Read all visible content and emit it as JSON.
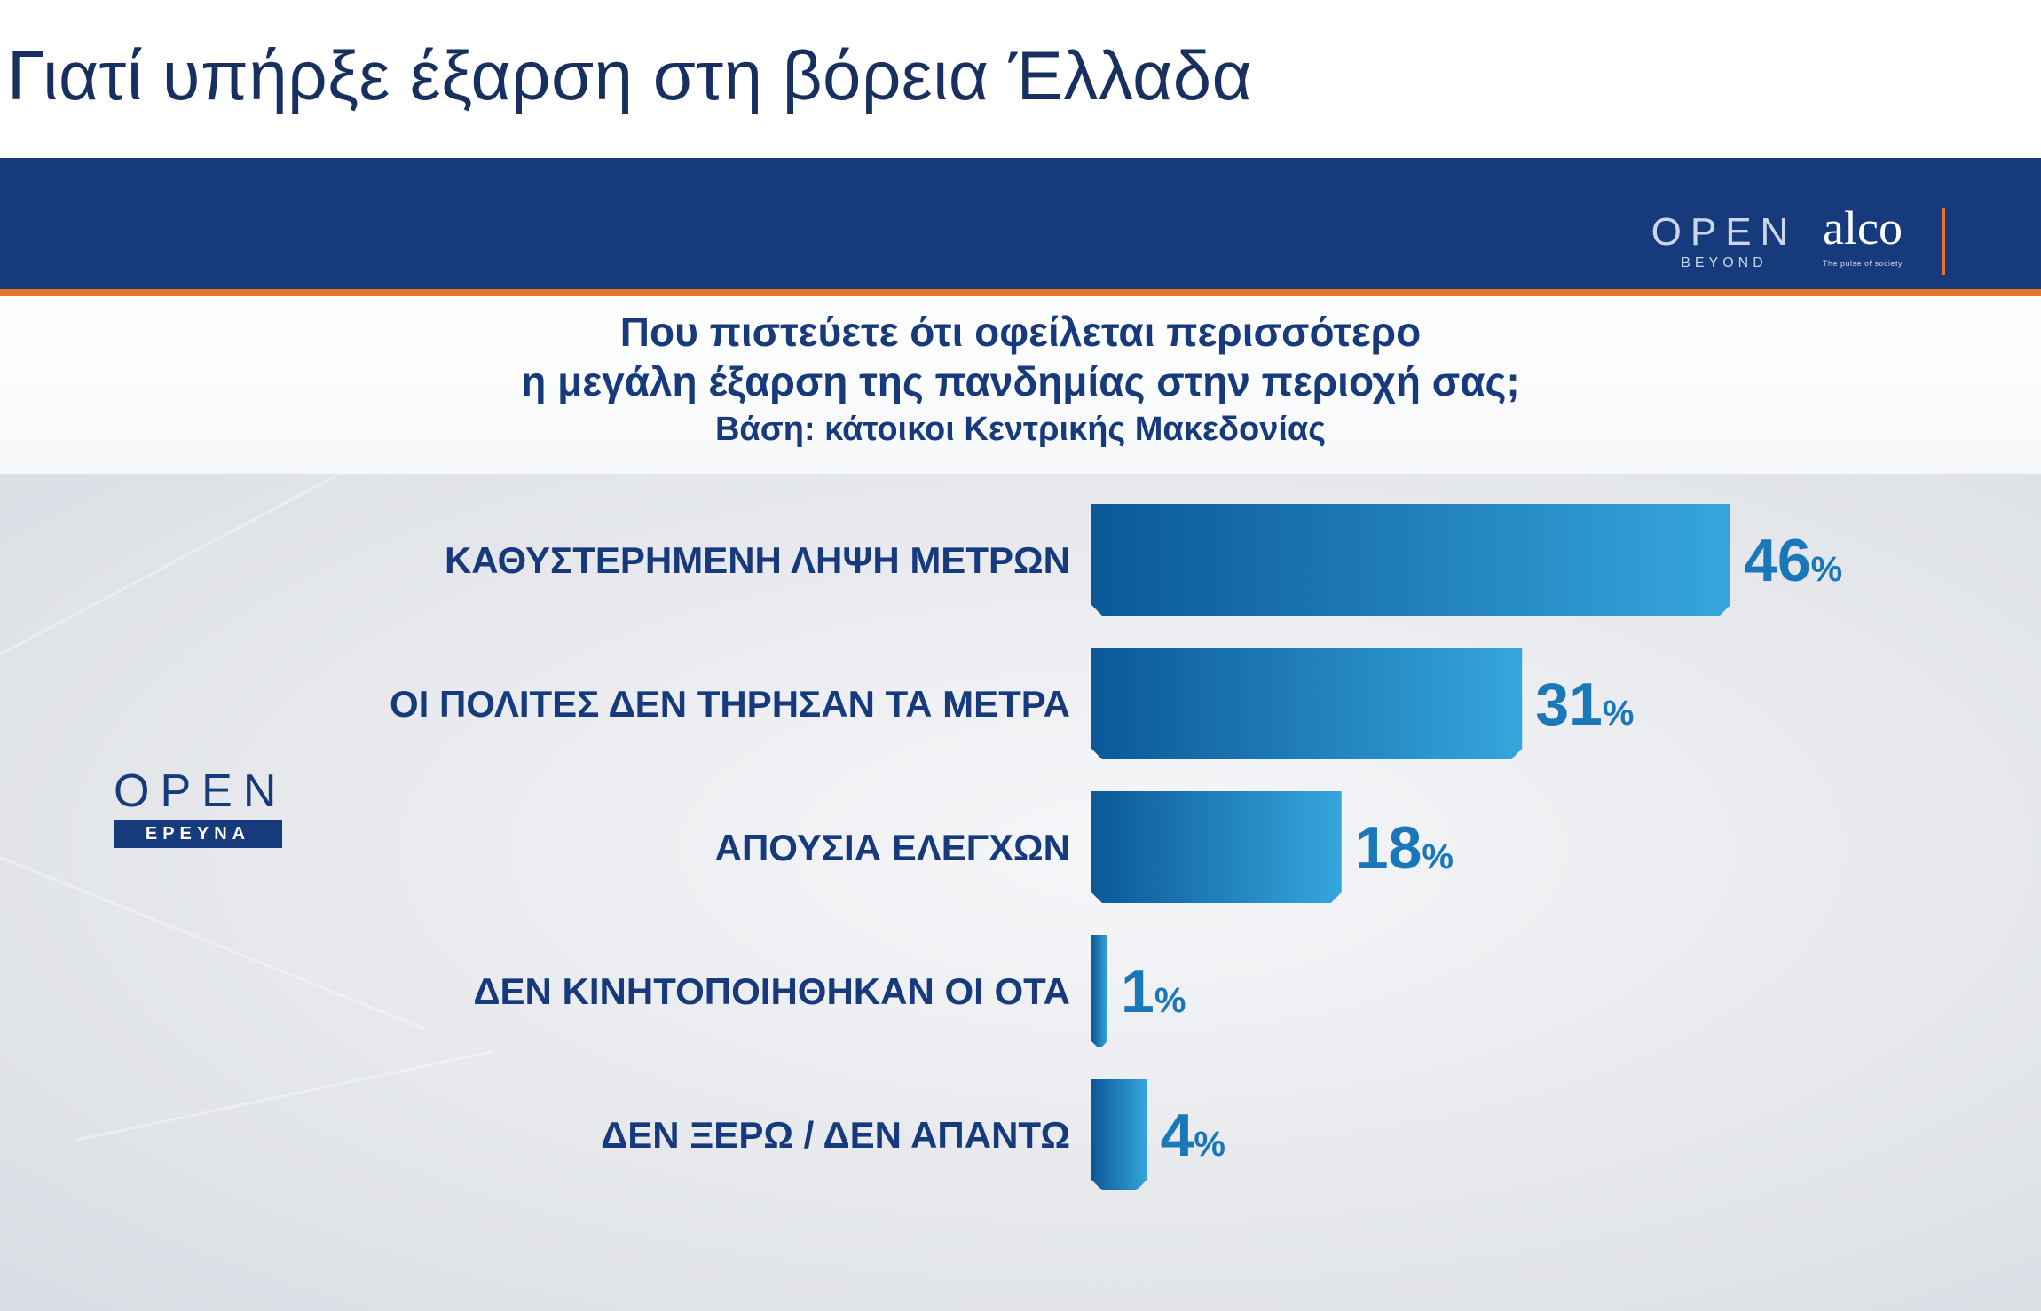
{
  "heading": "Γιατί υπήρξε έξαρση στη βόρεια Έλλαδα",
  "banner": {
    "color": "#163a7c",
    "accent": "#e8742a",
    "logo_open": "OPEN",
    "logo_open_sub": "BEYOND",
    "logo_alco": "alco",
    "logo_alco_sub": "The pulse of society"
  },
  "side_logo": {
    "word": "OPEN",
    "tag": "ΕΡΕΥΝΑ"
  },
  "chart_data": {
    "type": "bar",
    "orientation": "horizontal",
    "title_line1": "Που πιστεύετε ότι οφείλεται περισσότερο",
    "title_line2": "η μεγάλη έξαρση της πανδημίας στην περιοχή σας;",
    "subtitle": "Βάση: κάτοικοι Κεντρικής Μακεδονίας",
    "categories": [
      "ΚΑΘΥΣΤΕΡΗΜΕΝΗ ΛΗΨΗ ΜΕΤΡΩΝ",
      "ΟΙ ΠΟΛΙΤΕΣ ΔΕΝ ΤΗΡΗΣΑΝ ΤΑ ΜΕΤΡΑ",
      "ΑΠΟΥΣΙΑ ΕΛΕΓΧΩΝ",
      "ΔΕΝ ΚΙΝΗΤΟΠΟΙΗΘΗΚΑΝ ΟΙ ΟΤΑ",
      "ΔΕΝ ΞΕΡΩ / ΔΕΝ ΑΠΑΝΤΩ"
    ],
    "values": [
      46,
      31,
      18,
      1,
      4
    ],
    "unit": "%",
    "xlim": [
      0,
      46
    ],
    "grid": false,
    "legend": "none",
    "bar_color_dark": "#0b5896",
    "bar_color_light": "#35a6dc"
  }
}
